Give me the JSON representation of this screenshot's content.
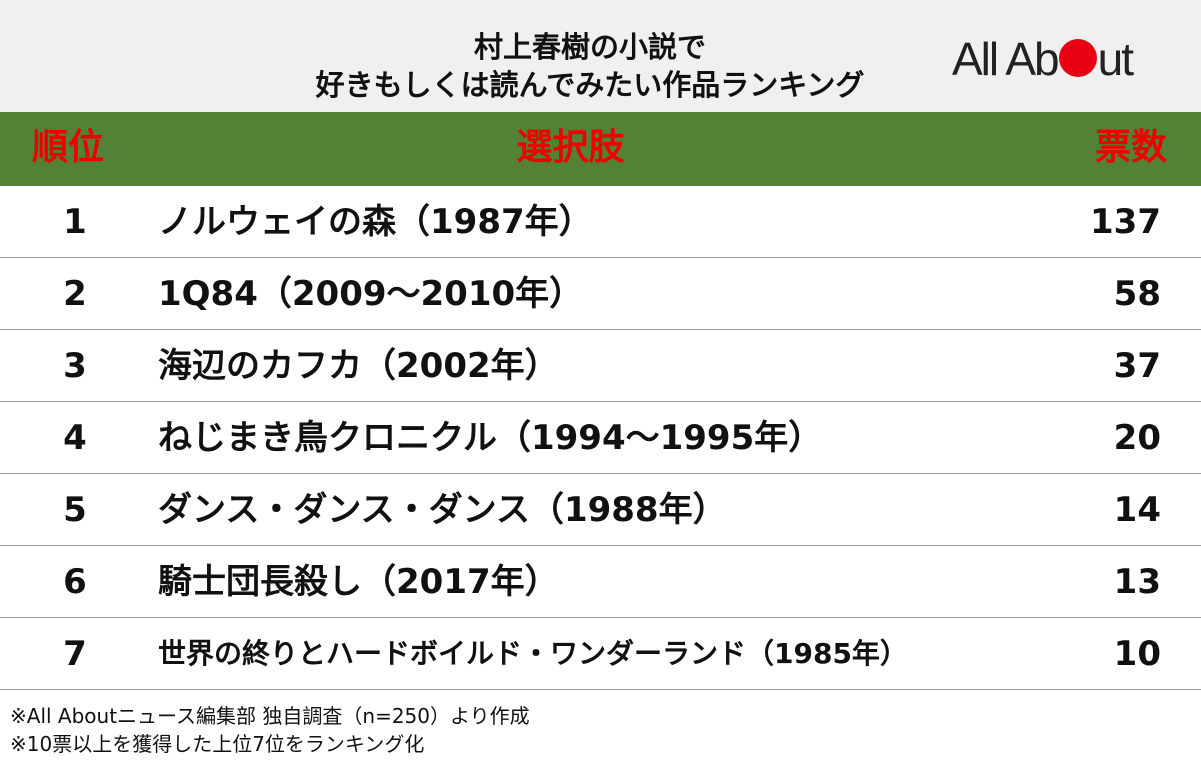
{
  "header": {
    "title_lines": [
      "村上春樹の小説で",
      "好きもしくは読んでみたい作品ランキング"
    ],
    "logo": [
      "All Ab",
      "ut"
    ]
  },
  "table": {
    "columns": [
      "順位",
      "選択肢",
      "票数"
    ],
    "rows": [
      [
        "1",
        "ノルウェイの森（1987年）",
        137
      ],
      [
        "2",
        "1Q84（2009〜2010年）",
        58
      ],
      [
        "3",
        "海辺のカフカ（2002年）",
        37
      ],
      [
        "4",
        "ねじまき鳥クロニクル（1994〜1995年）",
        20
      ],
      [
        "5",
        "ダンス・ダンス・ダンス（1988年）",
        14
      ],
      [
        "6",
        "騎士団長殺し（2017年）",
        13
      ],
      [
        "7",
        "世界の終りとハードボイルド・ワンダーランド（1985年）",
        10
      ]
    ]
  },
  "footnotes": [
    "※All Aboutニュース編集部 独自調査（n=250）より作成",
    "※10票以上を獲得した上位7位をランキング化"
  ]
}
